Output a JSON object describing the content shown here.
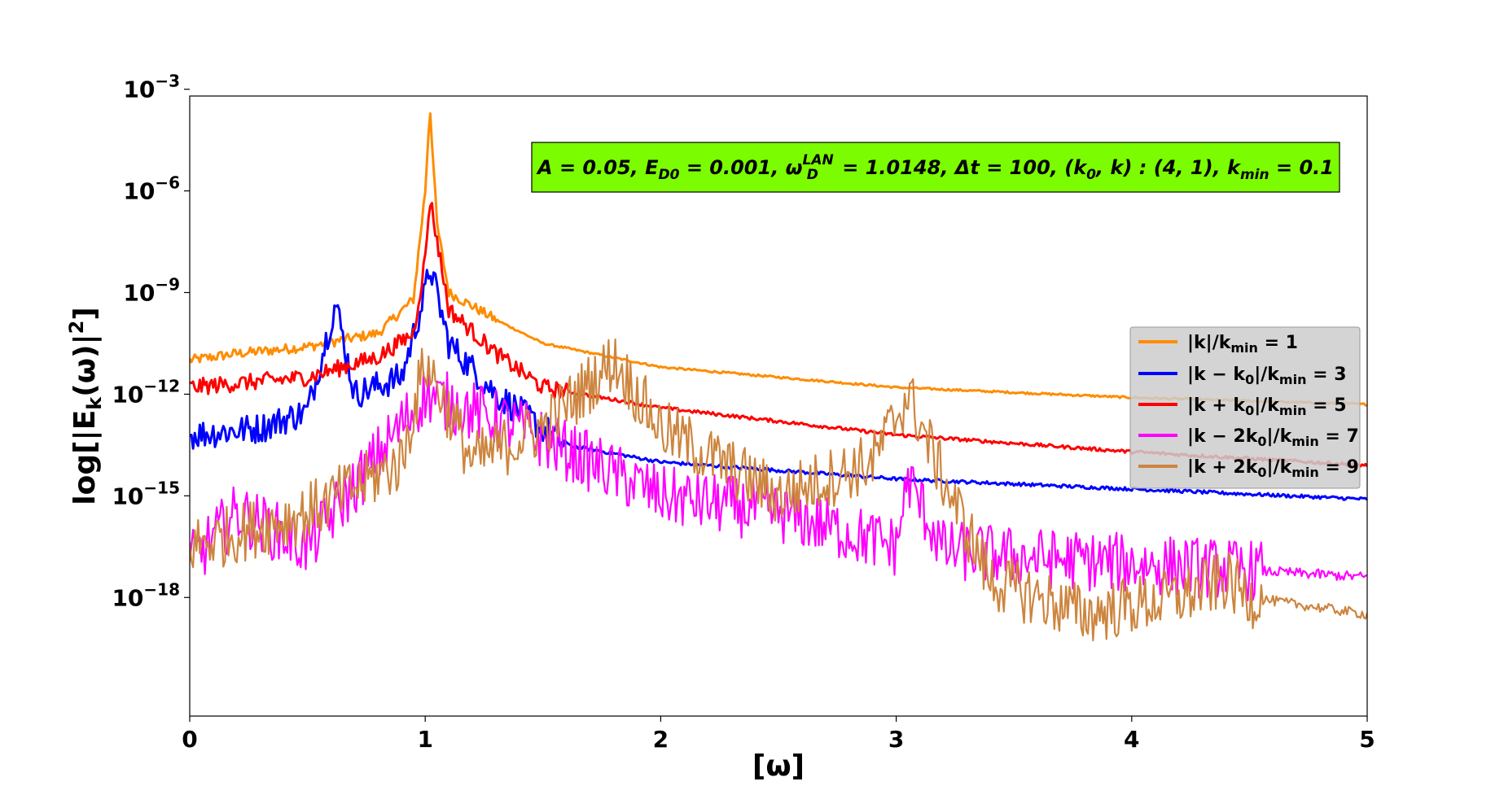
{
  "chart_data": {
    "type": "line",
    "xlabel": "[ω]",
    "ylabel": "log[|E_k(ω)|²]",
    "xlim": [
      0,
      5
    ],
    "ylim": [
      -21.5,
      -3.2
    ],
    "yscale": "log",
    "xticks": [
      "0",
      "1",
      "2",
      "3",
      "4",
      "5"
    ],
    "yticks": [
      {
        "exp": -3,
        "label": "−3"
      },
      {
        "exp": -6,
        "label": "−6"
      },
      {
        "exp": -9,
        "label": "−9"
      },
      {
        "exp": -12,
        "label": "−12"
      },
      {
        "exp": -15,
        "label": "−15"
      },
      {
        "exp": -18,
        "label": "−18"
      }
    ],
    "grid": false,
    "legend_position": "center-right",
    "annotation": {
      "text": "A = 0.05, E_D0 = 0.001, ω_D^LAN = 1.0148, Δt = 100, (k_0, k) : (4, 1), k_min = 0.1",
      "bg_color": "#7cfc00"
    },
    "series": [
      {
        "name": "|k|/k_min = 1",
        "color": "#ff8c00",
        "x": [
          0,
          0.2,
          0.5,
          0.8,
          0.95,
          1.0,
          1.02,
          1.05,
          1.1,
          1.3,
          1.5,
          2.0,
          3.0,
          4.0,
          5.0
        ],
        "y": [
          -11.0,
          -10.8,
          -10.6,
          -10.2,
          -9.2,
          -6.0,
          -3.5,
          -7.0,
          -9.0,
          -9.8,
          -10.5,
          -11.2,
          -11.8,
          -12.1,
          -12.3
        ]
      },
      {
        "name": "|k − k_0|/k_min = 3",
        "color": "#0000ff",
        "x": [
          0,
          0.3,
          0.5,
          0.62,
          0.7,
          0.9,
          1.0,
          1.02,
          1.1,
          1.3,
          1.6,
          2.0,
          3.0,
          4.0,
          5.0
        ],
        "y": [
          -13.2,
          -13.0,
          -12.5,
          -9.3,
          -12.0,
          -11.5,
          -9.0,
          -8.2,
          -10.5,
          -12.0,
          -13.5,
          -14.0,
          -14.5,
          -14.8,
          -15.1
        ]
      },
      {
        "name": "|k + k_0|/k_min = 5",
        "color": "#ff0000",
        "x": [
          0,
          0.5,
          0.8,
          0.95,
          1.0,
          1.02,
          1.1,
          1.3,
          1.5,
          2.0,
          3.0,
          4.0,
          5.0
        ],
        "y": [
          -11.8,
          -11.5,
          -10.9,
          -10.2,
          -8.0,
          -6.2,
          -9.5,
          -10.8,
          -11.8,
          -12.4,
          -13.2,
          -13.7,
          -14.1
        ]
      },
      {
        "name": "|k − 2k_0|/k_min = 7",
        "color": "#ff00ff",
        "x": [
          0,
          0.2,
          0.5,
          1.0,
          1.4,
          2.0,
          2.5,
          3.0,
          3.05,
          3.2,
          3.5,
          4.0,
          5.0
        ],
        "y": [
          -17.0,
          -15.5,
          -16.5,
          -12.0,
          -13.0,
          -15.0,
          -15.5,
          -16.5,
          -14.5,
          -16.6,
          -16.8,
          -17.0,
          -17.4
        ]
      },
      {
        "name": "|k + 2k_0|/k_min = 9",
        "color": "#cd853f",
        "x": [
          0,
          0.5,
          0.9,
          1.0,
          1.2,
          1.5,
          1.8,
          2.0,
          2.5,
          2.9,
          3.05,
          3.2,
          3.4,
          3.8,
          4.2,
          4.4,
          4.5,
          5.0
        ],
        "y": [
          -16.5,
          -15.5,
          -14.0,
          -11.0,
          -14.0,
          -13.0,
          -11.0,
          -13.0,
          -15.0,
          -14.0,
          -12.0,
          -14.5,
          -17.5,
          -18.5,
          -18.0,
          -17.5,
          -18.0,
          -18.5
        ]
      }
    ]
  }
}
